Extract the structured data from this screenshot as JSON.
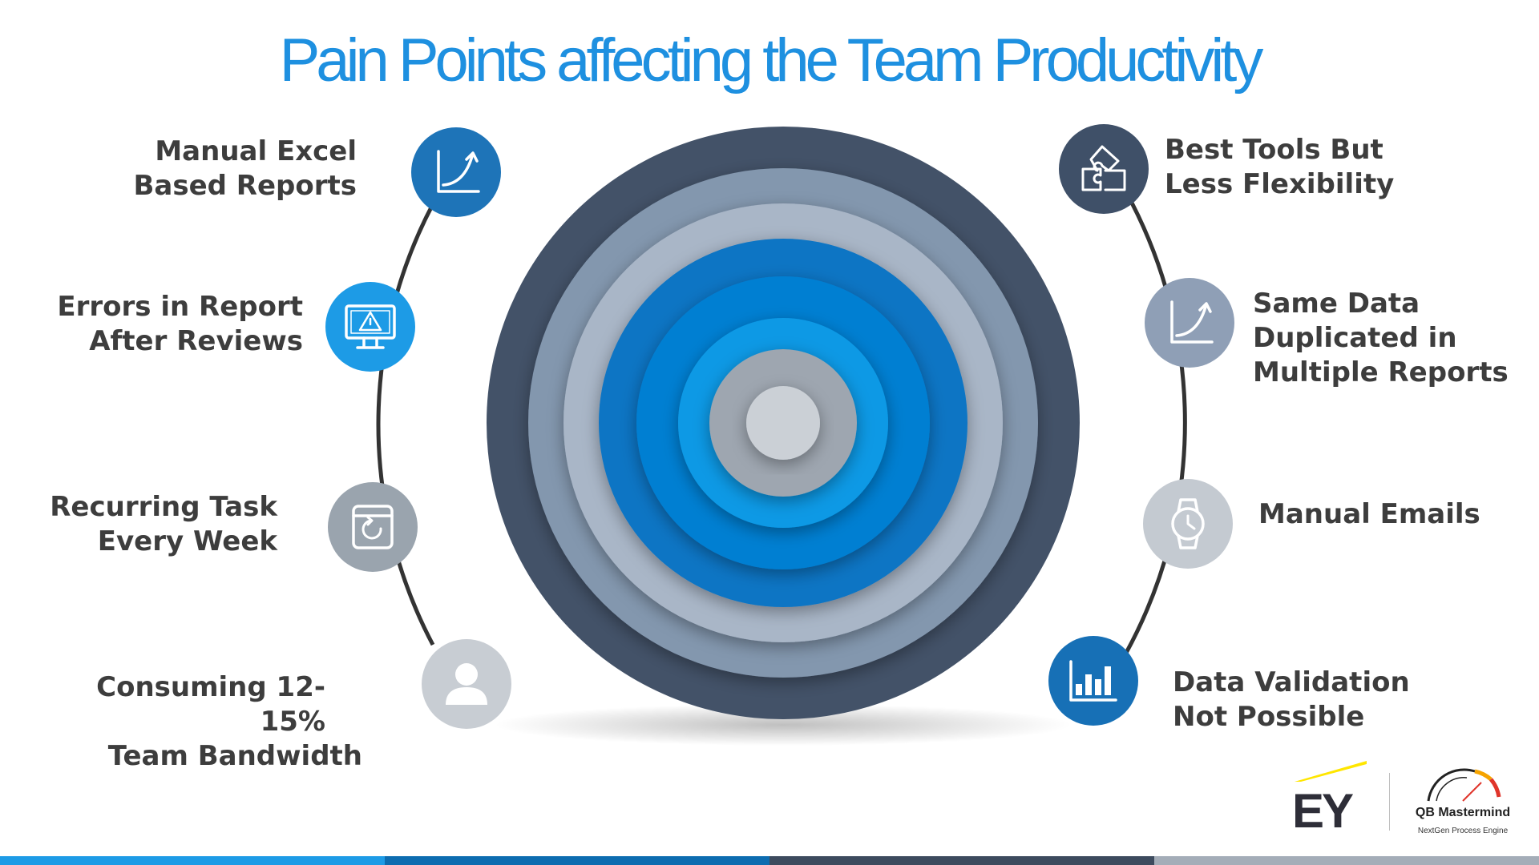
{
  "title": "Pain Points affecting the Team Productivity",
  "pain_points_left": [
    {
      "lines": [
        "Manual Excel",
        "Based Reports"
      ],
      "icon": "chart-growth-icon",
      "color": "#1e74b8"
    },
    {
      "lines": [
        "Errors in Report",
        "After Reviews"
      ],
      "icon": "monitor-warning-icon",
      "color": "#1d9be6"
    },
    {
      "lines": [
        "Recurring Task",
        "Every Week"
      ],
      "icon": "calendar-refresh-icon",
      "color": "#9aa4ae"
    },
    {
      "lines": [
        "Consuming 12-15%",
        "Team Bandwidth"
      ],
      "icon": "user-icon",
      "color": "#c8cdd3"
    }
  ],
  "pain_points_right": [
    {
      "lines": [
        "Best Tools But",
        "Less Flexibility"
      ],
      "icon": "puzzle-icon",
      "color": "#3f5068"
    },
    {
      "lines": [
        "Same Data",
        "Duplicated in",
        "Multiple Reports"
      ],
      "icon": "chart-growth-icon",
      "color": "#8f9fb6"
    },
    {
      "lines": [
        "Manual Emails"
      ],
      "icon": "watch-icon",
      "color": "#c4cad1"
    },
    {
      "lines": [
        "Data Validation",
        "Not Possible"
      ],
      "icon": "bar-chart-icon",
      "color": "#1770b6"
    }
  ],
  "rings_colors": [
    "#435268",
    "#8397ae",
    "#a9b6c7",
    "#0a74c4",
    "#007fd2",
    "#0d99e5",
    "#9ea6b0",
    "#cbd0d6"
  ],
  "logos": {
    "ey": "EY",
    "qb_name": "QB Mastermind",
    "qb_tagline": "NextGen Process Engine",
    "ey_accent": "#ffe600"
  },
  "footer_colors": [
    "#1d9be6",
    "#0d6cb0",
    "#3d4b5e",
    "#a4adb8"
  ]
}
